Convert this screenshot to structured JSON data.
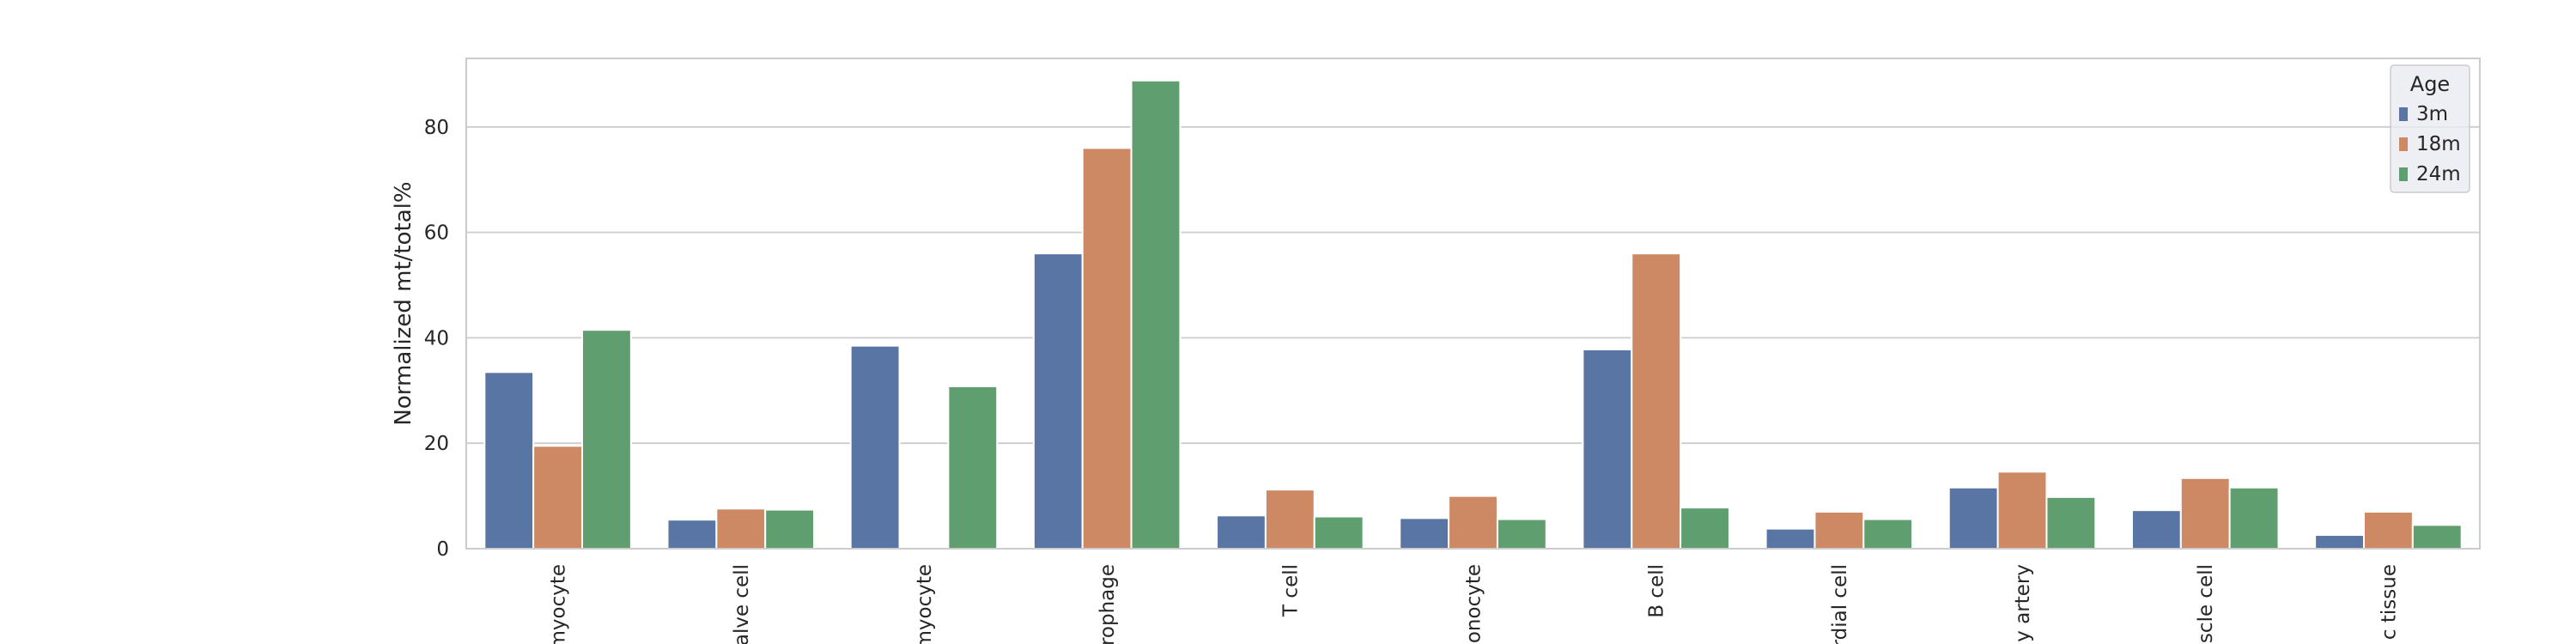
{
  "chart_data": {
    "type": "bar",
    "ylabel": "Normalized mt/total%",
    "ylim": [
      0,
      93
    ],
    "yticks": [
      0,
      20,
      40,
      60,
      80
    ],
    "grid": true,
    "legend": {
      "title": "Age",
      "placement": "top-right"
    },
    "categories": [
      "myocyte",
      "alve cell",
      "myocyte",
      "rophage",
      "T cell",
      "onocyte",
      "B cell",
      "rdial cell",
      "y artery",
      "scle cell",
      "c tissue"
    ],
    "series": [
      {
        "name": "3m",
        "color": "#5875a4",
        "values": [
          33.5,
          5.5,
          38.5,
          56,
          6.3,
          5.8,
          37.8,
          3.8,
          11.6,
          7.3,
          2.6
        ]
      },
      {
        "name": "18m",
        "color": "#cc8963",
        "values": [
          19.5,
          7.6,
          0,
          76,
          11.2,
          10,
          56,
          7,
          14.6,
          13.4,
          7
        ]
      },
      {
        "name": "24m",
        "color": "#5f9e6e",
        "values": [
          41.5,
          7.4,
          30.8,
          88.8,
          6.1,
          5.6,
          7.8,
          5.6,
          9.8,
          11.6,
          4.5
        ]
      }
    ]
  }
}
